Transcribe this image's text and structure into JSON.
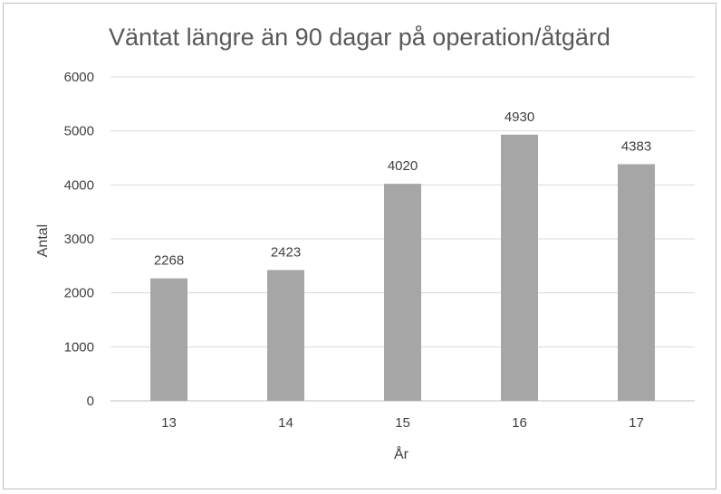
{
  "chart_data": {
    "type": "bar",
    "title": "Väntat längre än 90 dagar på operation/åtgärd",
    "xlabel": "År",
    "ylabel": "Antal",
    "categories": [
      "13",
      "14",
      "15",
      "16",
      "17"
    ],
    "values": [
      2268,
      2423,
      4020,
      4930,
      4383
    ],
    "ylim": [
      0,
      6000
    ],
    "yticks": [
      "0",
      "1000",
      "2000",
      "3000",
      "4000",
      "5000",
      "6000"
    ],
    "grid": true,
    "legend": "none",
    "bar_color": "#a6a6a6",
    "grid_color": "#d9d9d9"
  }
}
